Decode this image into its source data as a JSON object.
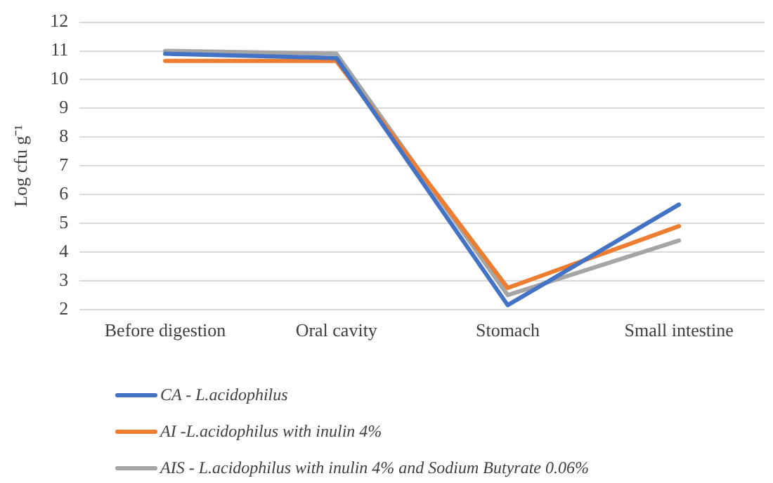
{
  "chart_data": {
    "type": "line",
    "ylabel": "Log cfu g⁻¹",
    "categories": [
      "Before digestion",
      "Oral cavity",
      "Stomach",
      "Small intestine"
    ],
    "series": [
      {
        "name": "CA - L.acidophilus",
        "color": "#4472c4",
        "values": [
          10.9,
          10.75,
          2.15,
          5.65
        ]
      },
      {
        "name": "AI -L.acidophilus with inulin 4%",
        "color": "#ed7d31",
        "values": [
          10.65,
          10.65,
          2.75,
          4.9
        ]
      },
      {
        "name": "AIS - L.acidophilus with inulin 4% and Sodium Butyrate 0.06%",
        "color": "#a5a5a5",
        "values": [
          11.0,
          10.9,
          2.5,
          4.4
        ]
      }
    ],
    "ylim": [
      2,
      12
    ],
    "yticks": [
      2,
      3,
      4,
      5,
      6,
      7,
      8,
      9,
      10,
      11,
      12
    ],
    "grid": "y",
    "legend": "bottom",
    "marker": "none",
    "line_style": "solid"
  }
}
